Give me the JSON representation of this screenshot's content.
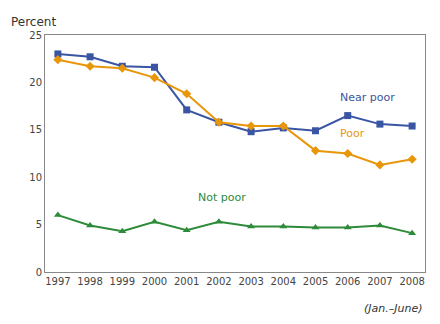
{
  "chart_data": {
    "type": "line",
    "y_label": "Percent",
    "footnote": "(Jan.–June)",
    "x": [
      1997,
      1998,
      1999,
      2000,
      2001,
      2002,
      2003,
      2004,
      2005,
      2006,
      2007,
      2008
    ],
    "series": [
      {
        "color": "#3955a3",
        "marker": "square",
        "values": [
          23.0,
          22.7,
          21.7,
          21.6,
          17.1,
          15.8,
          14.8,
          15.2,
          14.9,
          16.5,
          15.6,
          15.4
        ]
      },
      {
        "color": "#e8960a",
        "marker": "diamond",
        "values": [
          22.4,
          21.7,
          21.5,
          20.5,
          18.8,
          15.8,
          15.4,
          15.4,
          12.8,
          12.5,
          11.3,
          11.9
        ]
      },
      {
        "color": "#2e8b3a",
        "marker": "triangle-up",
        "values": [
          6.0,
          4.9,
          4.3,
          5.3,
          4.4,
          5.3,
          4.8,
          4.8,
          4.7,
          4.7,
          4.9,
          4.1
        ]
      }
    ],
    "annotations": [
      {
        "text": "Near poor",
        "x": 2005.7,
        "y": 17.5,
        "color": "#3955a3"
      },
      {
        "text": "Poor",
        "x": 2005.7,
        "y": 13.7,
        "color": "#e8960a"
      },
      {
        "text": "Not poor",
        "x": 2001.3,
        "y": 7.0,
        "color": "#2e8b3a"
      }
    ],
    "xlim": [
      1996.6,
      2008.4
    ],
    "xticks": [
      1997,
      1998,
      1999,
      2000,
      2001,
      2002,
      2003,
      2004,
      2005,
      2006,
      2007,
      2008
    ],
    "ylim": [
      0,
      25
    ],
    "yticks": [
      0,
      5,
      10,
      15,
      20,
      25
    ],
    "grid": false
  }
}
